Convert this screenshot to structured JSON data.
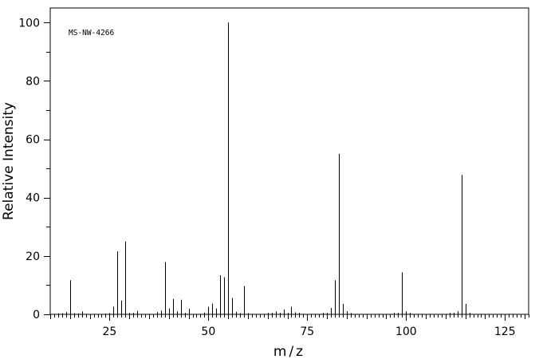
{
  "chart_data": {
    "type": "bar",
    "xlabel": "m/z",
    "ylabel": "Relative Intensity",
    "annotation": "MS-NW-4266",
    "xlim": [
      10,
      131
    ],
    "ylim": [
      0,
      105
    ],
    "x_ticks": [
      25,
      50,
      75,
      100,
      125
    ],
    "y_ticks": [
      0,
      20,
      40,
      60,
      80,
      100
    ],
    "x_minor_step": 1,
    "y_minor_step": 10,
    "grid": false,
    "peaks": [
      {
        "mz": 12,
        "intensity": 0.3
      },
      {
        "mz": 13,
        "intensity": 0.4
      },
      {
        "mz": 14,
        "intensity": 0.8
      },
      {
        "mz": 15,
        "intensity": 11.7
      },
      {
        "mz": 16,
        "intensity": 0.4
      },
      {
        "mz": 17,
        "intensity": 0.3
      },
      {
        "mz": 18,
        "intensity": 1.0
      },
      {
        "mz": 24,
        "intensity": 0.3
      },
      {
        "mz": 25,
        "intensity": 0.4
      },
      {
        "mz": 26,
        "intensity": 2.6
      },
      {
        "mz": 27,
        "intensity": 21.6
      },
      {
        "mz": 28,
        "intensity": 4.7
      },
      {
        "mz": 29,
        "intensity": 25.0
      },
      {
        "mz": 30,
        "intensity": 0.5
      },
      {
        "mz": 31,
        "intensity": 0.5
      },
      {
        "mz": 32,
        "intensity": 1.2
      },
      {
        "mz": 37,
        "intensity": 0.8
      },
      {
        "mz": 38,
        "intensity": 1.3
      },
      {
        "mz": 39,
        "intensity": 17.9
      },
      {
        "mz": 40,
        "intensity": 2.0
      },
      {
        "mz": 41,
        "intensity": 5.3
      },
      {
        "mz": 42,
        "intensity": 1.0
      },
      {
        "mz": 43,
        "intensity": 5.0
      },
      {
        "mz": 44,
        "intensity": 0.5
      },
      {
        "mz": 45,
        "intensity": 1.9
      },
      {
        "mz": 49,
        "intensity": 0.6
      },
      {
        "mz": 50,
        "intensity": 2.6
      },
      {
        "mz": 51,
        "intensity": 3.7
      },
      {
        "mz": 52,
        "intensity": 2.0
      },
      {
        "mz": 53,
        "intensity": 13.4
      },
      {
        "mz": 54,
        "intensity": 12.7
      },
      {
        "mz": 55,
        "intensity": 100.0
      },
      {
        "mz": 56,
        "intensity": 5.6
      },
      {
        "mz": 57,
        "intensity": 0.9
      },
      {
        "mz": 58,
        "intensity": 0.4
      },
      {
        "mz": 59,
        "intensity": 9.7
      },
      {
        "mz": 60,
        "intensity": 0.4
      },
      {
        "mz": 65,
        "intensity": 0.5
      },
      {
        "mz": 66,
        "intensity": 0.5
      },
      {
        "mz": 67,
        "intensity": 1.0
      },
      {
        "mz": 68,
        "intensity": 0.5
      },
      {
        "mz": 69,
        "intensity": 1.7
      },
      {
        "mz": 70,
        "intensity": 0.5
      },
      {
        "mz": 71,
        "intensity": 2.6
      },
      {
        "mz": 72,
        "intensity": 0.7
      },
      {
        "mz": 73,
        "intensity": 0.5
      },
      {
        "mz": 79,
        "intensity": 0.5
      },
      {
        "mz": 80,
        "intensity": 0.5
      },
      {
        "mz": 81,
        "intensity": 2.2
      },
      {
        "mz": 82,
        "intensity": 11.7
      },
      {
        "mz": 83,
        "intensity": 55.0
      },
      {
        "mz": 84,
        "intensity": 3.6
      },
      {
        "mz": 85,
        "intensity": 1.1
      },
      {
        "mz": 86,
        "intensity": 0.4
      },
      {
        "mz": 97,
        "intensity": 0.5
      },
      {
        "mz": 98,
        "intensity": 0.5
      },
      {
        "mz": 99,
        "intensity": 14.4
      },
      {
        "mz": 100,
        "intensity": 1.0
      },
      {
        "mz": 101,
        "intensity": 0.5
      },
      {
        "mz": 111,
        "intensity": 0.5
      },
      {
        "mz": 112,
        "intensity": 0.5
      },
      {
        "mz": 113,
        "intensity": 1.0
      },
      {
        "mz": 114,
        "intensity": 47.8
      },
      {
        "mz": 115,
        "intensity": 3.6
      },
      {
        "mz": 116,
        "intensity": 0.5
      }
    ]
  }
}
